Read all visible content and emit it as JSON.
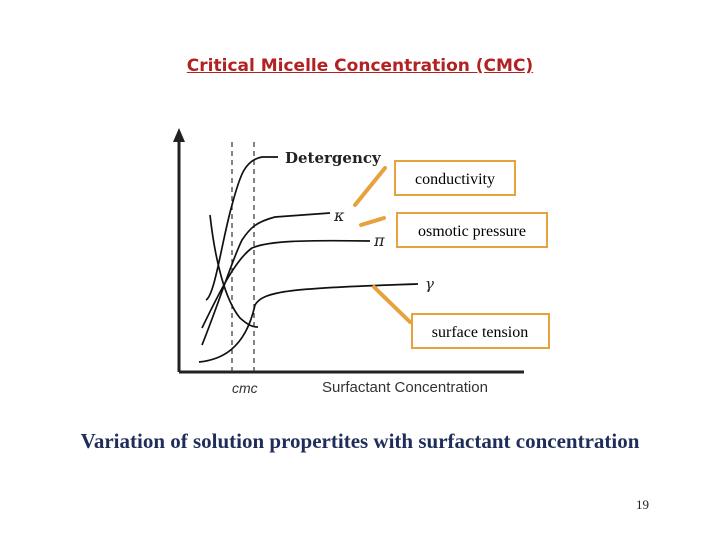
{
  "slide": {
    "title": "Critical Micelle Concentration (CMC)",
    "caption": "Variation of solution propertites with surfactant concentration",
    "page_number": "19"
  },
  "figure": {
    "curve_labels": {
      "detergency": "Detergency",
      "kappa": "κ",
      "pi": "π",
      "gamma": "γ"
    },
    "x_axis_label": "Surfactant Concentration",
    "cmc_label": "cmc"
  },
  "callouts": {
    "conductivity": "conductivity",
    "osmotic_pressure": "osmotic pressure",
    "surface_tension": "surface tension"
  },
  "colors": {
    "title": "#b22222",
    "caption": "#1f2d5a",
    "callout_border": "#e6a23c"
  }
}
